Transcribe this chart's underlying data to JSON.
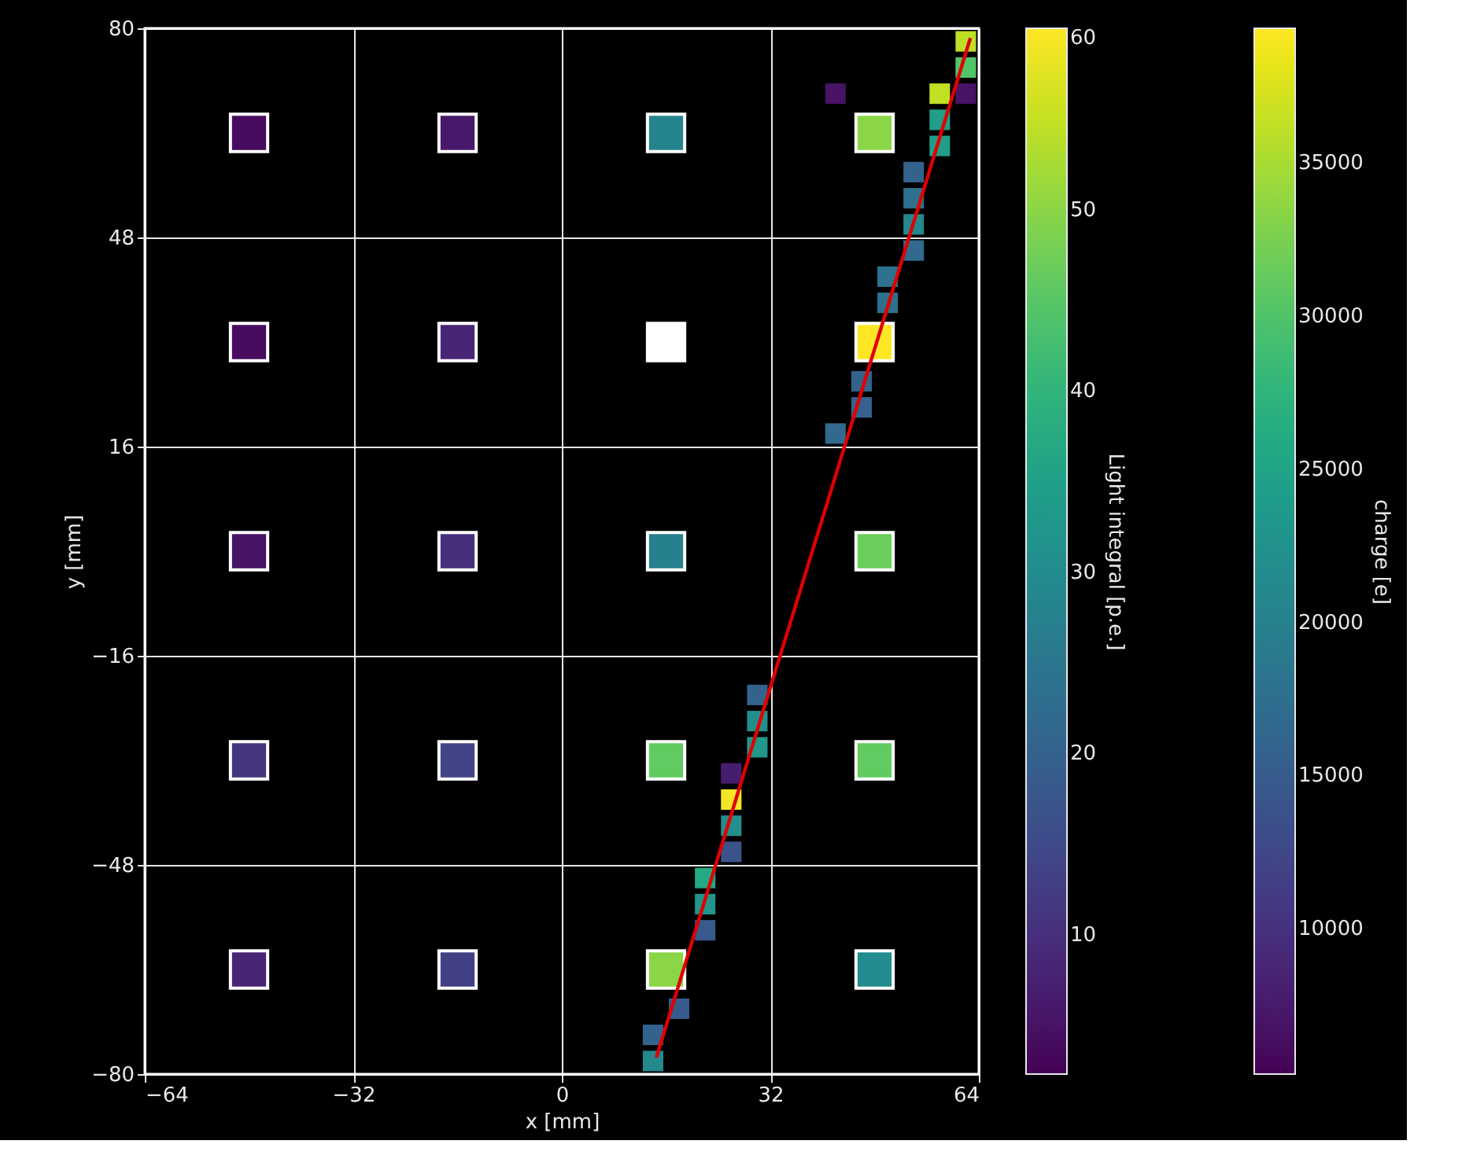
{
  "chart_data": [
    {
      "type": "scatter",
      "xlabel": "x [mm]",
      "ylabel": "y [mm]",
      "xlim": [
        -64,
        64
      ],
      "ylim": [
        -80,
        80
      ],
      "xticks": [
        {
          "value": -64,
          "label": "−64"
        },
        {
          "value": -32,
          "label": "−32"
        },
        0,
        32,
        64
      ],
      "yticks": [
        {
          "value": -80,
          "label": "−80"
        },
        {
          "value": -48,
          "label": "−48"
        },
        {
          "value": -16,
          "label": "−16"
        },
        16,
        48,
        80
      ],
      "grid": true,
      "clabel": "Light integral [p.e.]",
      "clim": [
        2.3,
        60
      ],
      "cticks": [
        10,
        20,
        30,
        40,
        50,
        60
      ],
      "series": [
        {
          "marker": "square",
          "x": [
            -48,
            -16,
            16,
            48,
            -48,
            -16,
            16,
            48,
            -48,
            -16,
            16,
            48,
            -48,
            -16,
            16,
            48,
            -48,
            -16,
            16,
            48
          ],
          "values": [
            64,
            64,
            64,
            64,
            32,
            32,
            32,
            32,
            0,
            0,
            0,
            0,
            -32,
            -32,
            -32,
            -32,
            -64,
            -64,
            -64,
            -64
          ],
          "cvalues": [
            4,
            6,
            28,
            50,
            4,
            8,
            null,
            60,
            5,
            10,
            27,
            47,
            11,
            14,
            46,
            46,
            8,
            13,
            50,
            30
          ]
        }
      ]
    },
    {
      "type": "scatter",
      "xlim": [
        -64,
        64
      ],
      "ylim": [
        -80,
        80
      ],
      "clabel": "charge [e]",
      "clim": [
        5250,
        39400
      ],
      "cticks": [
        10000,
        15000,
        20000,
        25000,
        30000,
        35000
      ],
      "series": [
        {
          "marker": "square",
          "x": [
            62,
            62,
            58,
            62,
            42,
            58,
            58,
            54,
            54,
            54,
            54,
            50,
            50,
            46,
            46,
            42,
            30,
            30,
            30,
            26,
            26,
            26,
            26,
            22,
            22,
            22,
            18,
            14,
            14
          ],
          "values": [
            78,
            74,
            70,
            70,
            70,
            66,
            62,
            58,
            54,
            50,
            46,
            42,
            38,
            26,
            22,
            18,
            -22,
            -26,
            -30,
            -34,
            -38,
            -42,
            -46,
            -50,
            -54,
            -58,
            -70,
            -74,
            -78
          ],
          "colors": [
            "#bddf26",
            "#52c569",
            "#c2df23",
            "#461365",
            "#461365",
            "#229d88",
            "#229d88",
            "#33638d",
            "#2d718e",
            "#25888d",
            "#316a8e",
            "#2d718e",
            "#2d718e",
            "#33638d",
            "#33638d",
            "#316a8e",
            "#33638d",
            "#228f8c",
            "#21968a",
            "#471d6f",
            "#f5e625",
            "#228f8c",
            "#3a538a",
            "#24a983",
            "#21968a",
            "#375b8c",
            "#375b8c",
            "#33638d",
            "#25888d"
          ]
        },
        {
          "type": "line",
          "color": "#e00000",
          "x": [
            14.5,
            62.7
          ],
          "values": [
            -77.5,
            78.5
          ]
        }
      ]
    }
  ]
}
